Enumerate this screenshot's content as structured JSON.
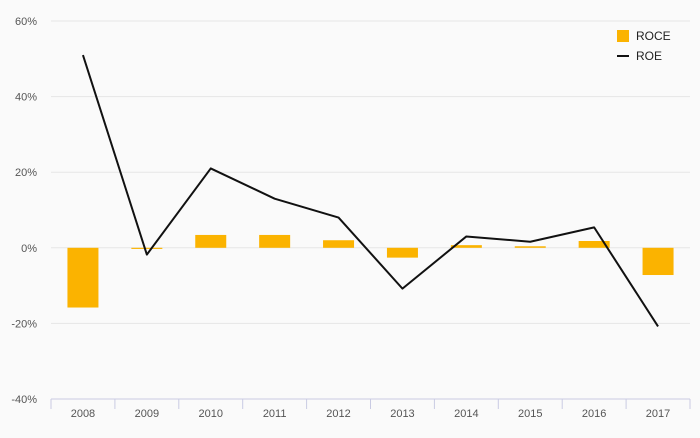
{
  "chart_data": {
    "type": "bar+line",
    "title": "",
    "xlabel": "",
    "ylabel": "",
    "categories": [
      "2008",
      "2009",
      "2010",
      "2011",
      "2012",
      "2013",
      "2014",
      "2015",
      "2016",
      "2017"
    ],
    "ylim": [
      -40,
      60
    ],
    "yticks": [
      -40,
      -20,
      0,
      20,
      40,
      60
    ],
    "ytick_labels": [
      "-40%",
      "-20%",
      "0%",
      "20%",
      "40%",
      "60%"
    ],
    "grid": true,
    "legend_position": "top-right",
    "series": [
      {
        "name": "ROCE",
        "type": "bar",
        "color": "#fbb300",
        "values": [
          -15.8,
          -0.3,
          3.4,
          3.4,
          2.0,
          -2.6,
          0.7,
          0.4,
          1.8,
          -7.2
        ]
      },
      {
        "name": "ROE",
        "type": "line",
        "color": "#111111",
        "values": [
          51.0,
          -1.8,
          21.0,
          13.0,
          8.0,
          -10.8,
          3.0,
          1.6,
          5.4,
          -20.8
        ]
      }
    ]
  }
}
